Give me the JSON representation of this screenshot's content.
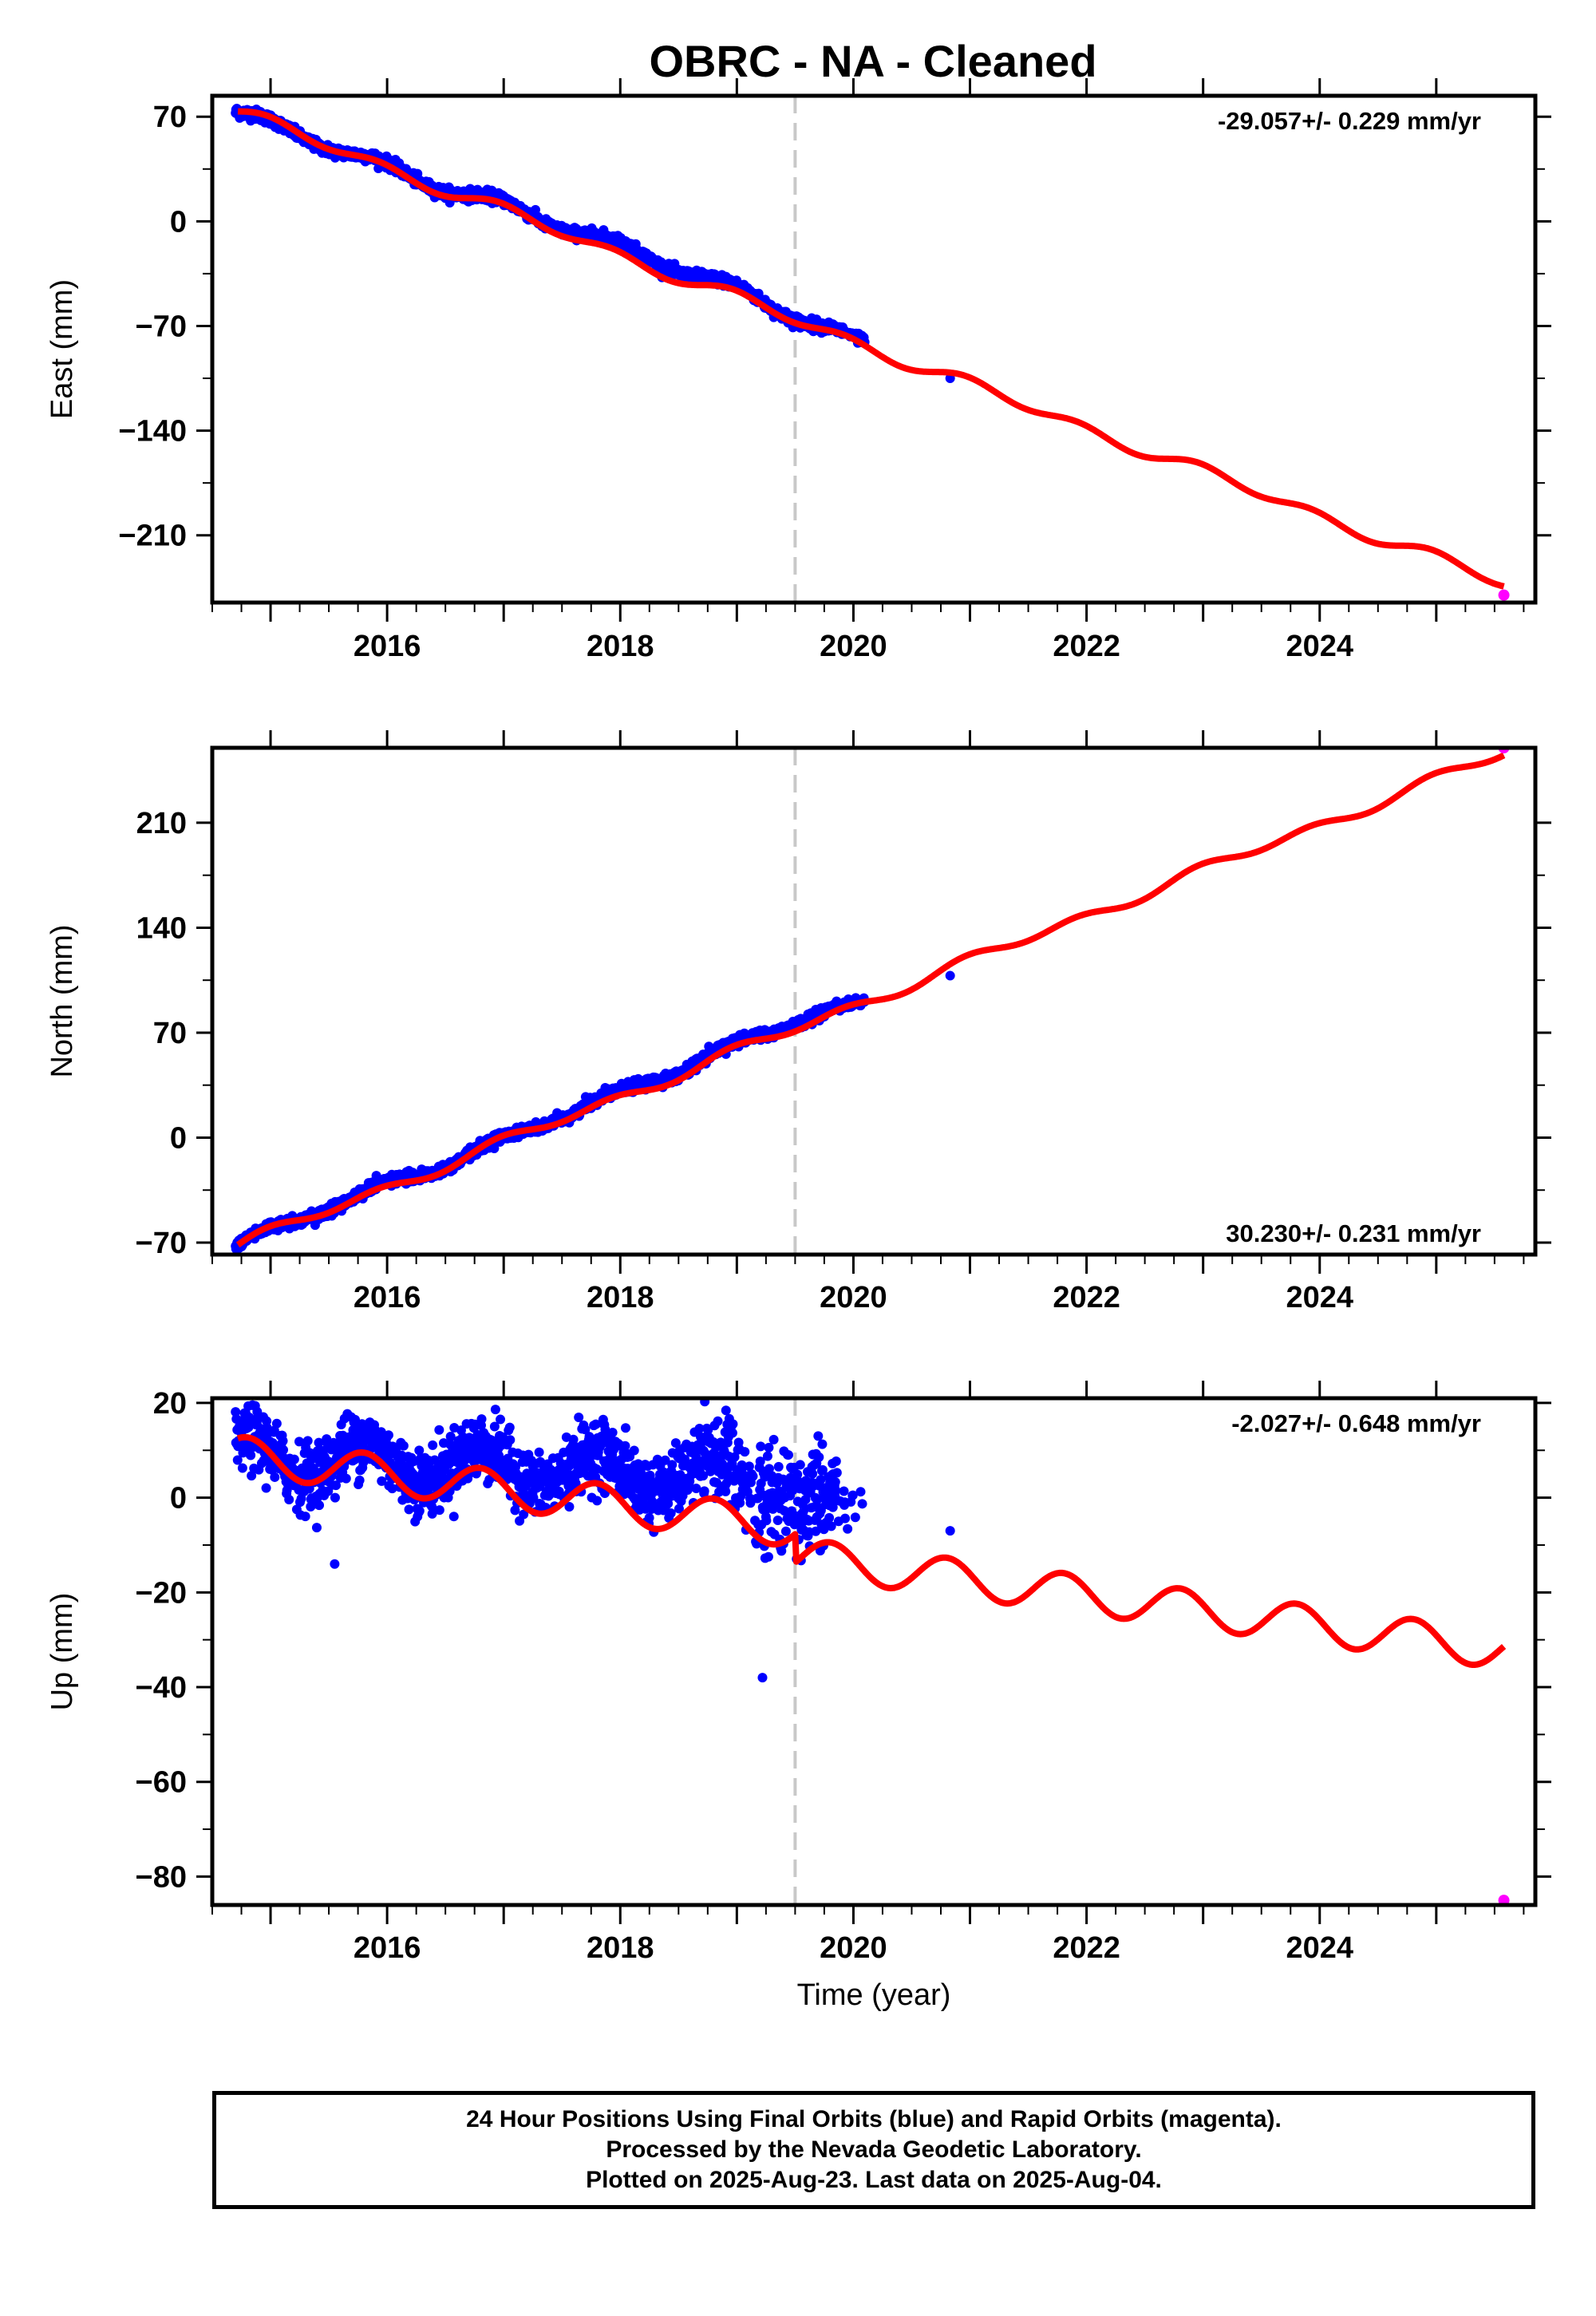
{
  "title": "OBRC  - NA - Cleaned",
  "footer": {
    "line1": "24 Hour Positions Using Final Orbits (blue) and Rapid Orbits (magenta).",
    "line2": "Processed by the Nevada Geodetic Laboratory.",
    "line3": "Plotted on 2025-Aug-23. Last data on 2025-Aug-04."
  },
  "colors": {
    "final_orbits": "#0000ff",
    "rapid_orbits": "#ff00ff",
    "model_fit": "#ff0000",
    "event_line": "#c8c8c8"
  },
  "chart_data": [
    {
      "type": "scatter",
      "panel": "east",
      "ylabel": "East (mm)",
      "xlabel": "",
      "rate_label": "-29.057+/- 0.229 mm/yr",
      "rate_position": "top-right",
      "xlim": [
        2014.5,
        2025.85
      ],
      "ylim": [
        -255,
        84
      ],
      "xticks": [
        2016,
        2018,
        2020,
        2022,
        2024
      ],
      "yticks": [
        70,
        0,
        -70,
        -140,
        -210
      ],
      "xtick_labels": [
        "2016",
        "2018",
        "2020",
        "2022",
        "2024"
      ],
      "ytick_labels": [
        "70",
        "0",
        "−70",
        "−140",
        "−210"
      ],
      "event_line_x": 2019.5,
      "grid": false,
      "data_span_final": [
        2014.7,
        2020.1
      ],
      "final_orbits_trend": {
        "x": [
          2014.7,
          2015.5,
          2016.3,
          2017.0,
          2018.0,
          2019.0,
          2019.5,
          2020.1
        ],
        "y": [
          73,
          51,
          27,
          11,
          -17,
          -46,
          -63,
          -83
        ]
      },
      "outliers": [
        {
          "x": 2020.83,
          "y": -105
        }
      ],
      "rapid_orbits": [
        {
          "x": 2025.58,
          "y": -250
        }
      ],
      "model": {
        "x": [
          2014.72,
          2025.58
        ],
        "y": [
          73,
          -246
        ],
        "rate": -29.057,
        "seasonal_amplitude": 3.5
      }
    },
    {
      "type": "scatter",
      "panel": "north",
      "ylabel": "North (mm)",
      "xlabel": "",
      "rate_label": "30.230+/- 0.231 mm/yr",
      "rate_position": "bottom-right",
      "xlim": [
        2014.5,
        2025.85
      ],
      "ylim": [
        -78,
        260
      ],
      "xticks": [
        2016,
        2018,
        2020,
        2022,
        2024
      ],
      "yticks": [
        210,
        140,
        70,
        0,
        -70
      ],
      "xtick_labels": [
        "2016",
        "2018",
        "2020",
        "2022",
        "2024"
      ],
      "ytick_labels": [
        "210",
        "140",
        "70",
        "0",
        "−70"
      ],
      "event_line_x": 2019.5,
      "grid": false,
      "data_span_final": [
        2014.7,
        2020.1
      ],
      "final_orbits_trend": {
        "x": [
          2014.7,
          2015.5,
          2016.5,
          2017.5,
          2018.5,
          2019.5,
          2020.1
        ],
        "y": [
          -72,
          -46,
          -18,
          15,
          45,
          78,
          88
        ]
      },
      "outliers": [
        {
          "x": 2020.83,
          "y": 108
        }
      ],
      "rapid_orbits": [
        {
          "x": 2025.58,
          "y": 260
        }
      ],
      "model": {
        "x": [
          2014.72,
          2025.58
        ],
        "y": [
          -72,
          256
        ],
        "rate": 30.23,
        "seasonal_amplitude": 3
      }
    },
    {
      "type": "scatter",
      "panel": "up",
      "ylabel": "Up (mm)",
      "xlabel": "Time (year)",
      "rate_label": "-2.027+/- 0.648 mm/yr",
      "rate_position": "top-right",
      "xlim": [
        2014.5,
        2025.85
      ],
      "ylim": [
        -86,
        21
      ],
      "xticks": [
        2016,
        2018,
        2020,
        2022,
        2024
      ],
      "yticks": [
        20,
        0,
        -20,
        -40,
        -60,
        -80
      ],
      "xtick_labels": [
        "2016",
        "2018",
        "2020",
        "2022",
        "2024"
      ],
      "ytick_labels": [
        "20",
        "0",
        "−20",
        "−40",
        "−60",
        "−80"
      ],
      "event_line_x": 2019.5,
      "grid": false,
      "data_span_final": [
        2014.7,
        2020.1
      ],
      "outliers": [
        {
          "x": 2019.22,
          "y": -38
        },
        {
          "x": 2020.83,
          "y": -7
        },
        {
          "x": 2015.55,
          "y": -14
        }
      ],
      "rapid_orbits": [
        {
          "x": 2025.58,
          "y": -85
        }
      ],
      "model": {
        "x": [
          2014.72,
          2025.58
        ],
        "y": [
          9,
          -26
        ],
        "rate": -2.027,
        "seasonal_amplitude": 4,
        "offset_at_event": -6
      }
    }
  ]
}
